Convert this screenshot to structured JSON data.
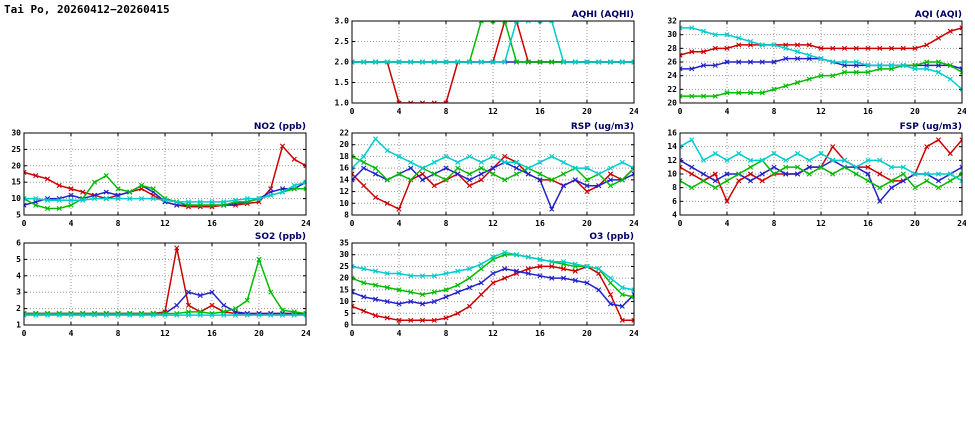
{
  "page_title": "Tai Po, 20260412−20260415",
  "hours": [
    0,
    1,
    2,
    3,
    4,
    5,
    6,
    7,
    8,
    9,
    10,
    11,
    12,
    13,
    14,
    15,
    16,
    17,
    18,
    19,
    20,
    21,
    22,
    23,
    24
  ],
  "style": {
    "red": "#cc0000",
    "blue": "#2222cc",
    "green": "#00bb00",
    "cyan": "#00cccc",
    "title_color": "#000066"
  },
  "chart_data": [
    {
      "id": "aqhi",
      "type": "line",
      "title": "AQHI (AQHI)",
      "xlabel": "",
      "ylabel": "AQHI",
      "xlim": [
        0,
        24
      ],
      "ylim": [
        1.0,
        3.0
      ],
      "xticks": [
        0,
        4,
        8,
        12,
        16,
        20,
        24
      ],
      "xtick_labels": [
        "0",
        "4",
        "8",
        "12",
        "16",
        "20",
        "24"
      ],
      "yticks": [
        1.0,
        1.5,
        2.0,
        2.5,
        3.0
      ],
      "ytick_labels": [
        "1.0",
        "1.5",
        "2.0",
        "2.5",
        "3.0"
      ],
      "grid": true,
      "series": [
        {
          "name": "red-line",
          "color": "#cc0000",
          "values": [
            2,
            2,
            2,
            2,
            1,
            1,
            1,
            1,
            1,
            2,
            2,
            2,
            2,
            3,
            3,
            2,
            2,
            2,
            2,
            2,
            2,
            2,
            2,
            2,
            2
          ]
        },
        {
          "name": "blue-line",
          "color": "#2222cc",
          "values": [
            2,
            2,
            2,
            2,
            2,
            2,
            2,
            2,
            2,
            2,
            2,
            2,
            2,
            2,
            2,
            2,
            2,
            2,
            2,
            2,
            2,
            2,
            2,
            2,
            2
          ]
        },
        {
          "name": "green-line",
          "color": "#00bb00",
          "values": [
            2,
            2,
            2,
            2,
            2,
            2,
            2,
            2,
            2,
            2,
            2,
            3,
            3,
            3,
            2,
            2,
            2,
            2,
            2,
            2,
            2,
            2,
            2,
            2,
            2
          ]
        },
        {
          "name": "cyan-line",
          "color": "#00cccc",
          "values": [
            2,
            2,
            2,
            2,
            2,
            2,
            2,
            2,
            2,
            2,
            2,
            2,
            2,
            2,
            3,
            3,
            3,
            3,
            2,
            2,
            2,
            2,
            2,
            2,
            2
          ]
        }
      ]
    },
    {
      "id": "aqi",
      "type": "line",
      "title": "AQI (AQI)",
      "xlabel": "",
      "ylabel": "AQI",
      "xlim": [
        0,
        24
      ],
      "ylim": [
        20,
        32
      ],
      "xticks": [
        0,
        4,
        8,
        12,
        16,
        20,
        24
      ],
      "xtick_labels": [
        "0",
        "4",
        "8",
        "12",
        "16",
        "20",
        "24"
      ],
      "yticks": [
        20,
        22,
        24,
        26,
        28,
        30,
        32
      ],
      "ytick_labels": [
        "20",
        "22",
        "24",
        "26",
        "28",
        "30",
        "32"
      ],
      "grid": true,
      "series": [
        {
          "name": "red-line",
          "color": "#cc0000",
          "values": [
            27,
            27.5,
            27.5,
            28,
            28,
            28.5,
            28.5,
            28.5,
            28.5,
            28.5,
            28.5,
            28.5,
            28,
            28,
            28,
            28,
            28,
            28,
            28,
            28,
            28,
            28.5,
            29.5,
            30.5,
            31
          ]
        },
        {
          "name": "blue-line",
          "color": "#2222cc",
          "values": [
            25,
            25,
            25.5,
            25.5,
            26,
            26,
            26,
            26,
            26,
            26.5,
            26.5,
            26.5,
            26.5,
            26,
            25.5,
            25.5,
            25.5,
            25.5,
            25.5,
            25.5,
            25.5,
            25.5,
            25.5,
            25.5,
            25
          ]
        },
        {
          "name": "green-line",
          "color": "#00bb00",
          "values": [
            21,
            21,
            21,
            21,
            21.5,
            21.5,
            21.5,
            21.5,
            22,
            22.5,
            23,
            23.5,
            24,
            24,
            24.5,
            24.5,
            24.5,
            25,
            25,
            25.5,
            25.5,
            26,
            26,
            25.5,
            24.5
          ]
        },
        {
          "name": "cyan-line",
          "color": "#00cccc",
          "values": [
            31,
            31,
            30.5,
            30,
            30,
            29.5,
            29,
            28.5,
            28.5,
            28,
            27.5,
            27,
            26.5,
            26,
            26,
            26,
            25.5,
            25.5,
            25.5,
            25.5,
            25,
            25,
            24.5,
            23.5,
            22
          ]
        }
      ]
    },
    {
      "id": "no2",
      "type": "line",
      "title": "NO2 (ppb)",
      "xlabel": "",
      "ylabel": "NO2",
      "xlim": [
        0,
        24
      ],
      "ylim": [
        5,
        30
      ],
      "xticks": [
        0,
        4,
        8,
        12,
        16,
        20,
        24
      ],
      "xtick_labels": [
        "0",
        "4",
        "8",
        "12",
        "16",
        "20",
        "24"
      ],
      "yticks": [
        5,
        10,
        15,
        20,
        25,
        30
      ],
      "ytick_labels": [
        "5",
        "10",
        "15",
        "20",
        "25",
        "30"
      ],
      "grid": true,
      "series": [
        {
          "name": "red-line",
          "color": "#cc0000",
          "values": [
            18,
            17,
            16,
            14,
            13,
            12,
            11,
            10,
            11,
            12,
            13,
            11,
            9,
            8,
            7.5,
            7.5,
            7.5,
            8,
            8,
            8.5,
            9,
            13,
            26,
            22,
            20
          ]
        },
        {
          "name": "blue-line",
          "color": "#2222cc",
          "values": [
            8,
            9,
            10,
            10,
            11,
            10,
            11,
            12,
            11,
            12,
            14,
            12,
            9,
            8,
            8,
            8,
            8,
            8,
            8.5,
            9,
            10,
            12,
            13,
            13,
            15
          ]
        },
        {
          "name": "green-line",
          "color": "#00bb00",
          "values": [
            10,
            8,
            7,
            7,
            8,
            10,
            15,
            17,
            13,
            12,
            14,
            13,
            10,
            9,
            8,
            8,
            8,
            8,
            9,
            9,
            10,
            11,
            12,
            13,
            13
          ]
        },
        {
          "name": "cyan-line",
          "color": "#00cccc",
          "values": [
            10,
            10,
            9.5,
            9.5,
            9.5,
            9.5,
            10,
            10,
            10,
            10,
            10,
            10,
            9.5,
            9,
            9,
            9,
            9,
            9,
            9.5,
            10,
            10,
            11,
            12,
            14,
            15
          ]
        }
      ]
    },
    {
      "id": "rsp",
      "type": "line",
      "title": "RSP (ug/m3)",
      "xlabel": "",
      "ylabel": "RSP",
      "xlim": [
        0,
        24
      ],
      "ylim": [
        8,
        22
      ],
      "xticks": [
        0,
        4,
        8,
        12,
        16,
        20,
        24
      ],
      "xtick_labels": [
        "0",
        "4",
        "8",
        "12",
        "16",
        "20",
        "24"
      ],
      "yticks": [
        8,
        10,
        12,
        14,
        16,
        18,
        20,
        22
      ],
      "ytick_labels": [
        "8",
        "10",
        "12",
        "14",
        "16",
        "18",
        "20",
        "22"
      ],
      "grid": true,
      "series": [
        {
          "name": "red-line",
          "color": "#cc0000",
          "values": [
            15,
            13,
            11,
            10,
            9,
            14,
            15,
            13,
            14,
            15,
            13,
            14,
            16,
            18,
            17,
            15,
            14,
            14,
            13,
            14,
            12,
            13,
            15,
            14,
            16
          ]
        },
        {
          "name": "blue-line",
          "color": "#2222cc",
          "values": [
            14,
            16,
            15,
            14,
            15,
            16,
            14,
            15,
            16,
            15,
            14,
            15,
            16,
            17,
            16,
            15,
            14,
            9,
            13,
            14,
            13,
            13,
            14,
            14,
            15
          ]
        },
        {
          "name": "green-line",
          "color": "#00bb00",
          "values": [
            18,
            17,
            16,
            14,
            15,
            14,
            16,
            15,
            14,
            16,
            15,
            16,
            15,
            14,
            15,
            16,
            15,
            14,
            15,
            16,
            14,
            15,
            13,
            14,
            16
          ]
        },
        {
          "name": "cyan-line",
          "color": "#00cccc",
          "values": [
            16,
            18,
            21,
            19,
            18,
            17,
            16,
            17,
            18,
            17,
            18,
            17,
            18,
            17,
            17,
            16,
            17,
            18,
            17,
            16,
            16,
            15,
            16,
            17,
            16
          ]
        }
      ]
    },
    {
      "id": "fsp",
      "type": "line",
      "title": "FSP (ug/m3)",
      "xlabel": "",
      "ylabel": "FSP",
      "xlim": [
        0,
        24
      ],
      "ylim": [
        4,
        16
      ],
      "xticks": [
        0,
        4,
        8,
        12,
        16,
        20,
        24
      ],
      "xtick_labels": [
        "0",
        "4",
        "8",
        "12",
        "16",
        "20",
        "24"
      ],
      "yticks": [
        4,
        6,
        8,
        10,
        12,
        14,
        16
      ],
      "ytick_labels": [
        "4",
        "6",
        "8",
        "10",
        "12",
        "14",
        "16"
      ],
      "grid": true,
      "series": [
        {
          "name": "red-line",
          "color": "#cc0000",
          "values": [
            11,
            10,
            9,
            10,
            6,
            9,
            10,
            9,
            10,
            10,
            10,
            11,
            11,
            14,
            12,
            11,
            11,
            10,
            9,
            9,
            10,
            14,
            15,
            13,
            15
          ]
        },
        {
          "name": "blue-line",
          "color": "#2222cc",
          "values": [
            12,
            11,
            10,
            9,
            10,
            10,
            9,
            10,
            11,
            10,
            10,
            11,
            11,
            12,
            11,
            11,
            10,
            6,
            8,
            9,
            10,
            10,
            9,
            10,
            11
          ]
        },
        {
          "name": "green-line",
          "color": "#00bb00",
          "values": [
            9,
            8,
            9,
            8,
            9,
            10,
            11,
            12,
            10,
            11,
            11,
            10,
            11,
            10,
            11,
            10,
            9,
            8,
            9,
            10,
            8,
            9,
            8,
            9,
            10
          ]
        },
        {
          "name": "cyan-line",
          "color": "#00cccc",
          "values": [
            14,
            15,
            12,
            13,
            12,
            13,
            12,
            12,
            13,
            12,
            13,
            12,
            13,
            12,
            12,
            11,
            12,
            12,
            11,
            11,
            10,
            10,
            10,
            10,
            9
          ]
        }
      ]
    },
    {
      "id": "so2",
      "type": "line",
      "title": "SO2 (ppb)",
      "xlabel": "",
      "ylabel": "SO2",
      "xlim": [
        0,
        24
      ],
      "ylim": [
        1,
        6
      ],
      "xticks": [
        0,
        4,
        8,
        12,
        16,
        20,
        24
      ],
      "xtick_labels": [
        "0",
        "4",
        "8",
        "12",
        "16",
        "20",
        "24"
      ],
      "yticks": [
        1,
        2,
        3,
        4,
        5,
        6
      ],
      "ytick_labels": [
        "1",
        "2",
        "3",
        "4",
        "5",
        "6"
      ],
      "grid": true,
      "series": [
        {
          "name": "red-line",
          "color": "#cc0000",
          "values": [
            1.7,
            1.7,
            1.7,
            1.7,
            1.7,
            1.7,
            1.7,
            1.7,
            1.7,
            1.7,
            1.7,
            1.7,
            1.8,
            5.7,
            2.2,
            1.8,
            2.2,
            1.8,
            1.7,
            1.7,
            1.7,
            1.7,
            1.7,
            1.7,
            1.7
          ]
        },
        {
          "name": "blue-line",
          "color": "#2222cc",
          "values": [
            1.7,
            1.7,
            1.7,
            1.7,
            1.7,
            1.7,
            1.7,
            1.7,
            1.7,
            1.7,
            1.7,
            1.7,
            1.7,
            2.2,
            3,
            2.8,
            3,
            2.2,
            1.8,
            1.7,
            1.7,
            1.7,
            1.7,
            1.7,
            1.7
          ]
        },
        {
          "name": "green-line",
          "color": "#00bb00",
          "values": [
            1.7,
            1.7,
            1.7,
            1.7,
            1.7,
            1.7,
            1.7,
            1.7,
            1.7,
            1.7,
            1.7,
            1.7,
            1.7,
            1.7,
            1.8,
            1.8,
            1.7,
            1.8,
            2,
            2.5,
            5,
            3,
            1.9,
            1.8,
            1.7
          ]
        },
        {
          "name": "cyan-line",
          "color": "#00cccc",
          "values": [
            1.6,
            1.6,
            1.6,
            1.6,
            1.6,
            1.6,
            1.6,
            1.6,
            1.6,
            1.6,
            1.6,
            1.6,
            1.6,
            1.6,
            1.6,
            1.6,
            1.6,
            1.6,
            1.6,
            1.6,
            1.6,
            1.6,
            1.6,
            1.6,
            1.6
          ]
        }
      ]
    },
    {
      "id": "o3",
      "type": "line",
      "title": "O3 (ppb)",
      "xlabel": "",
      "ylabel": "O3",
      "xlim": [
        0,
        24
      ],
      "ylim": [
        0,
        35
      ],
      "xticks": [
        0,
        4,
        8,
        12,
        16,
        20,
        24
      ],
      "xtick_labels": [
        "0",
        "4",
        "8",
        "12",
        "16",
        "20",
        "24"
      ],
      "yticks": [
        0,
        5,
        10,
        15,
        20,
        25,
        30,
        35
      ],
      "ytick_labels": [
        "0",
        "5",
        "10",
        "15",
        "20",
        "25",
        "30",
        "35"
      ],
      "grid": true,
      "series": [
        {
          "name": "red-line",
          "color": "#cc0000",
          "values": [
            8,
            6,
            4,
            3,
            2,
            2,
            2,
            2,
            3,
            5,
            8,
            13,
            18,
            20,
            22,
            24,
            25,
            25,
            24,
            23,
            25,
            22,
            13,
            2,
            2
          ]
        },
        {
          "name": "blue-line",
          "color": "#2222cc",
          "values": [
            14,
            12,
            11,
            10,
            9,
            10,
            9,
            10,
            12,
            14,
            16,
            18,
            22,
            24,
            23,
            22,
            21,
            20,
            20,
            19,
            18,
            15,
            9,
            8,
            13
          ]
        },
        {
          "name": "green-line",
          "color": "#00bb00",
          "values": [
            20,
            18,
            17,
            16,
            15,
            14,
            13,
            14,
            15,
            17,
            20,
            24,
            28,
            30,
            30,
            29,
            28,
            27,
            26,
            25,
            25,
            24,
            18,
            13,
            12
          ]
        },
        {
          "name": "cyan-line",
          "color": "#00cccc",
          "values": [
            25,
            24,
            23,
            22,
            22,
            21,
            21,
            21,
            22,
            23,
            24,
            26,
            29,
            31,
            30,
            29,
            28,
            27,
            27,
            26,
            25,
            24,
            20,
            16,
            15
          ]
        }
      ]
    }
  ]
}
